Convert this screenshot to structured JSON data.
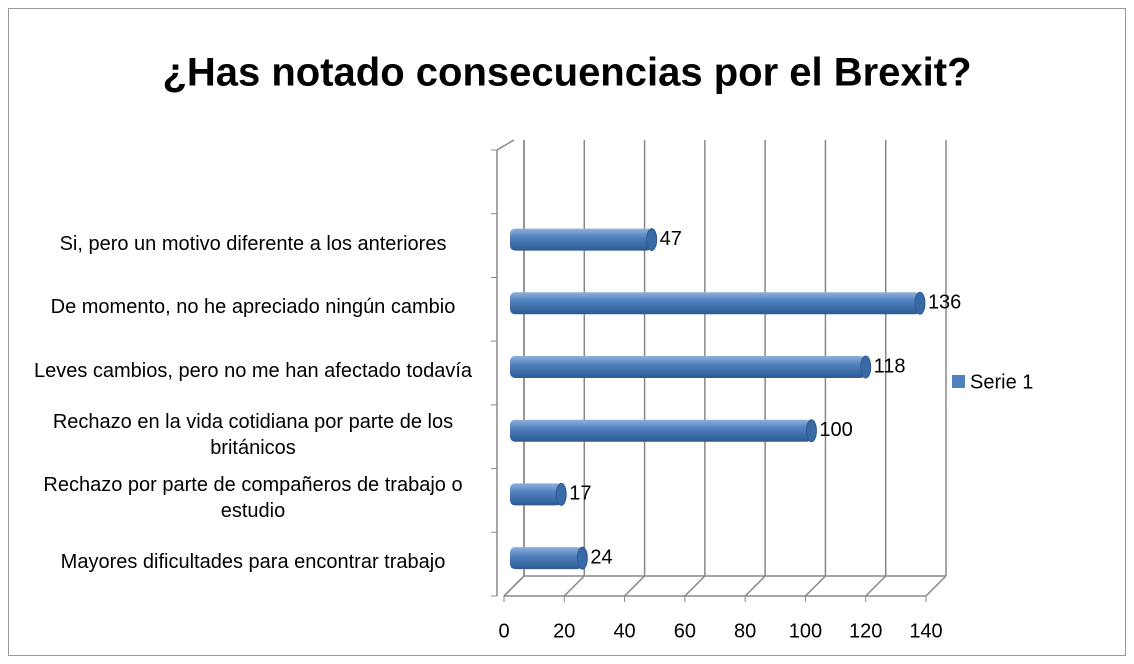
{
  "chart_data": {
    "type": "bar",
    "orientation": "horizontal",
    "title": "¿Has notado consecuencias por el Brexit?",
    "categories": [
      "Mayores dificultades para encontrar trabajo",
      "Rechazo por parte de compañeros de trabajo o estudio",
      "Rechazo en la vida cotidiana por parte de los británicos",
      "Leves cambios, pero no me han afectado todavía",
      "De momento, no he apreciado ningún cambio",
      "Si, pero un motivo diferente a los anteriores",
      null
    ],
    "series": [
      {
        "name": "Serie 1",
        "color": "#4f81bd",
        "values": [
          24,
          17,
          100,
          118,
          136,
          47,
          null
        ]
      }
    ],
    "xlim": [
      0,
      140
    ],
    "xticks": [
      0,
      20,
      40,
      60,
      80,
      100,
      120,
      140
    ],
    "grid": true,
    "legend": "right"
  }
}
